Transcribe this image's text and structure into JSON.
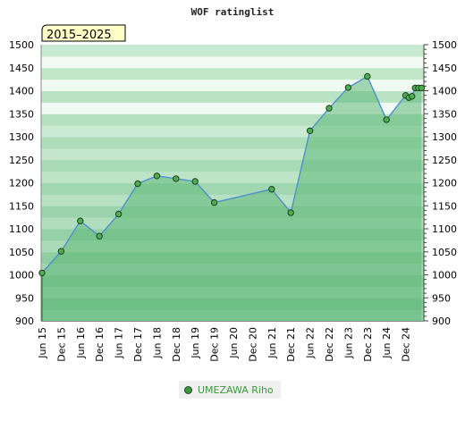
{
  "chart_data": {
    "type": "area",
    "title": "WOF ratinglist",
    "period_badge": "2015–2025",
    "ylim": [
      900,
      1500
    ],
    "y_ticks": [
      900,
      950,
      1000,
      1050,
      1100,
      1150,
      1200,
      1250,
      1300,
      1350,
      1400,
      1450,
      1500
    ],
    "x_ticks": [
      "Jun 15",
      "Dec 15",
      "Jun 16",
      "Dec 16",
      "Jun 17",
      "Dec 17",
      "Jun 18",
      "Dec 18",
      "Jun 19",
      "Dec 19",
      "Jun 20",
      "Dec 20",
      "Jun 21",
      "Dec 21",
      "Jun 22",
      "Dec 22",
      "Jun 23",
      "Dec 23",
      "Jun 24",
      "Dec 24"
    ],
    "legend_position": "bottom-center",
    "grid": true,
    "series": [
      {
        "name": "UMEZAWA Riho",
        "color": "#3a9a3a",
        "points": [
          {
            "x": "2015-06",
            "y": 1004
          },
          {
            "x": "2015-12",
            "y": 1051
          },
          {
            "x": "2016-06",
            "y": 1117
          },
          {
            "x": "2016-12",
            "y": 1084
          },
          {
            "x": "2017-06",
            "y": 1132
          },
          {
            "x": "2017-12",
            "y": 1198
          },
          {
            "x": "2018-06",
            "y": 1215
          },
          {
            "x": "2018-12",
            "y": 1209
          },
          {
            "x": "2019-06",
            "y": 1203
          },
          {
            "x": "2019-12",
            "y": 1157
          },
          {
            "x": "2021-06",
            "y": 1186
          },
          {
            "x": "2021-12",
            "y": 1135
          },
          {
            "x": "2022-06",
            "y": 1313
          },
          {
            "x": "2022-12",
            "y": 1362
          },
          {
            "x": "2023-06",
            "y": 1407
          },
          {
            "x": "2023-12",
            "y": 1431
          },
          {
            "x": "2024-06",
            "y": 1337
          },
          {
            "x": "2024-12",
            "y": 1390
          },
          {
            "x": "2025-01",
            "y": 1385
          },
          {
            "x": "2025-02",
            "y": 1388
          },
          {
            "x": "2025-03",
            "y": 1406
          },
          {
            "x": "2025-04",
            "y": 1406
          },
          {
            "x": "2025-05",
            "y": 1406
          }
        ]
      }
    ]
  },
  "colors": {
    "line": "#4f8fd0",
    "fill": "#7cc48f",
    "marker": "#4caf50",
    "badge_bg": "#ffffc8"
  }
}
